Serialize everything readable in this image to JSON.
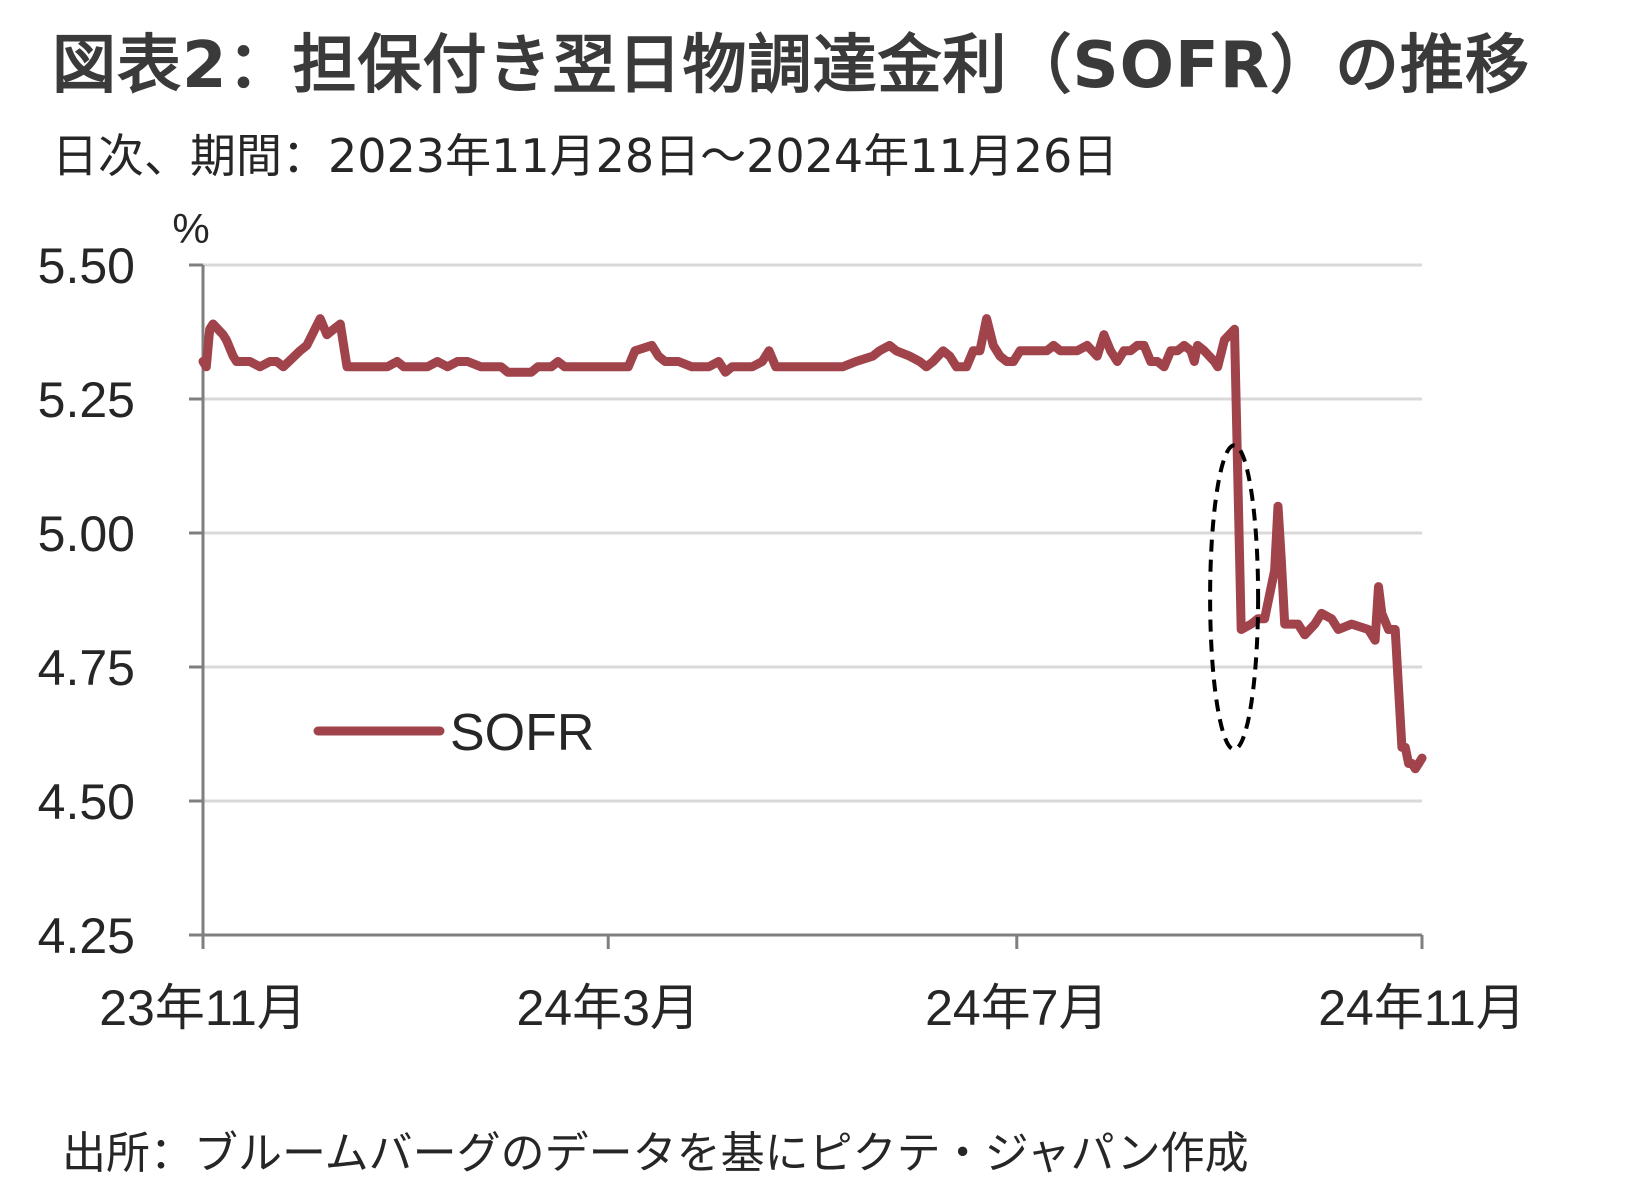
{
  "title": "図表2：担保付き翌日物調達金利（SOFR）の推移",
  "subtitle": "日次、期間：2023年11月28日～2024年11月26日",
  "source": "出所：ブルームバーグのデータを基にピクテ・ジャパン作成",
  "colors": {
    "series": "#a0434b",
    "grid": "#d9d9d9",
    "axis": "#7f7f7f",
    "annotation": "#000000"
  },
  "chart_data": {
    "type": "line",
    "yunit": "%",
    "ylim": [
      4.25,
      5.5
    ],
    "yticks": [
      "5.50",
      "5.25",
      "5.00",
      "4.75",
      "4.50",
      "4.25"
    ],
    "ytick_values": [
      5.5,
      5.25,
      5.0,
      4.75,
      4.5,
      4.25
    ],
    "xlim": [
      "2023-11-28",
      "2024-11-26"
    ],
    "xticks": [
      {
        "date": "2023-11-28",
        "label": "23年11月"
      },
      {
        "date": "2024-03-28",
        "label": "24年3月"
      },
      {
        "date": "2024-07-28",
        "label": "24年7月"
      },
      {
        "date": "2024-11-26",
        "label": "24年11月"
      }
    ],
    "grid": true,
    "legend_position": "left-lower",
    "annotation": {
      "type": "dashed-ellipse",
      "center": [
        "2024-09-30",
        4.88
      ],
      "note": ""
    },
    "series": [
      {
        "name": "SOFR",
        "points": [
          [
            "2023-11-28",
            5.32
          ],
          [
            "2023-11-29",
            5.31
          ],
          [
            "2023-11-30",
            5.38
          ],
          [
            "2023-12-01",
            5.39
          ],
          [
            "2023-12-04",
            5.37
          ],
          [
            "2023-12-05",
            5.36
          ],
          [
            "2023-12-07",
            5.33
          ],
          [
            "2023-12-08",
            5.32
          ],
          [
            "2023-12-12",
            5.32
          ],
          [
            "2023-12-15",
            5.31
          ],
          [
            "2023-12-18",
            5.32
          ],
          [
            "2023-12-20",
            5.32
          ],
          [
            "2023-12-22",
            5.31
          ],
          [
            "2023-12-27",
            5.34
          ],
          [
            "2023-12-29",
            5.35
          ],
          [
            "2024-01-02",
            5.4
          ],
          [
            "2024-01-04",
            5.37
          ],
          [
            "2024-01-06",
            5.38
          ],
          [
            "2024-01-08",
            5.39
          ],
          [
            "2024-01-10",
            5.31
          ],
          [
            "2024-01-16",
            5.31
          ],
          [
            "2024-01-22",
            5.31
          ],
          [
            "2024-01-25",
            5.32
          ],
          [
            "2024-01-27",
            5.31
          ],
          [
            "2024-02-03",
            5.31
          ],
          [
            "2024-02-06",
            5.32
          ],
          [
            "2024-02-09",
            5.31
          ],
          [
            "2024-02-12",
            5.32
          ],
          [
            "2024-02-15",
            5.32
          ],
          [
            "2024-02-19",
            5.31
          ],
          [
            "2024-02-25",
            5.31
          ],
          [
            "2024-02-27",
            5.3
          ],
          [
            "2024-03-05",
            5.3
          ],
          [
            "2024-03-07",
            5.31
          ],
          [
            "2024-03-11",
            5.31
          ],
          [
            "2024-03-13",
            5.32
          ],
          [
            "2024-03-15",
            5.31
          ],
          [
            "2024-04-01",
            5.31
          ],
          [
            "2024-04-03",
            5.31
          ],
          [
            "2024-04-05",
            5.34
          ],
          [
            "2024-04-10",
            5.35
          ],
          [
            "2024-04-12",
            5.33
          ],
          [
            "2024-04-14",
            5.32
          ],
          [
            "2024-04-18",
            5.32
          ],
          [
            "2024-04-22",
            5.31
          ],
          [
            "2024-04-27",
            5.31
          ],
          [
            "2024-04-30",
            5.32
          ],
          [
            "2024-05-02",
            5.3
          ],
          [
            "2024-05-04",
            5.31
          ],
          [
            "2024-05-10",
            5.31
          ],
          [
            "2024-05-13",
            5.32
          ],
          [
            "2024-05-15",
            5.34
          ],
          [
            "2024-05-17",
            5.31
          ],
          [
            "2024-05-20",
            5.31
          ],
          [
            "2024-06-06",
            5.31
          ],
          [
            "2024-06-10",
            5.32
          ],
          [
            "2024-06-15",
            5.33
          ],
          [
            "2024-06-17",
            5.34
          ],
          [
            "2024-06-20",
            5.35
          ],
          [
            "2024-06-22",
            5.34
          ],
          [
            "2024-06-26",
            5.33
          ],
          [
            "2024-06-29",
            5.32
          ],
          [
            "2024-07-01",
            5.31
          ],
          [
            "2024-07-03",
            5.32
          ],
          [
            "2024-07-06",
            5.34
          ],
          [
            "2024-07-08",
            5.33
          ],
          [
            "2024-07-10",
            5.31
          ],
          [
            "2024-07-13",
            5.31
          ],
          [
            "2024-07-15",
            5.34
          ],
          [
            "2024-07-17",
            5.34
          ],
          [
            "2024-07-19",
            5.4
          ],
          [
            "2024-07-21",
            5.35
          ],
          [
            "2024-07-23",
            5.33
          ],
          [
            "2024-07-25",
            5.32
          ],
          [
            "2024-07-27",
            5.32
          ],
          [
            "2024-07-29",
            5.34
          ],
          [
            "2024-08-02",
            5.34
          ],
          [
            "2024-08-06",
            5.34
          ],
          [
            "2024-08-08",
            5.35
          ],
          [
            "2024-08-10",
            5.34
          ],
          [
            "2024-08-15",
            5.34
          ],
          [
            "2024-08-18",
            5.35
          ],
          [
            "2024-08-21",
            5.33
          ],
          [
            "2024-08-23",
            5.37
          ],
          [
            "2024-08-25",
            5.34
          ],
          [
            "2024-08-27",
            5.32
          ],
          [
            "2024-08-29",
            5.34
          ],
          [
            "2024-08-31",
            5.34
          ],
          [
            "2024-09-02",
            5.35
          ],
          [
            "2024-09-04",
            5.35
          ],
          [
            "2024-09-06",
            5.32
          ],
          [
            "2024-09-08",
            5.32
          ],
          [
            "2024-09-10",
            5.31
          ],
          [
            "2024-09-12",
            5.34
          ],
          [
            "2024-09-14",
            5.34
          ],
          [
            "2024-09-16",
            5.35
          ],
          [
            "2024-09-18",
            5.34
          ],
          [
            "2024-09-19",
            5.32
          ],
          [
            "2024-09-20",
            5.35
          ],
          [
            "2024-09-22",
            5.34
          ],
          [
            "2024-09-25",
            5.32
          ],
          [
            "2024-09-26",
            5.31
          ],
          [
            "2024-09-28",
            5.36
          ],
          [
            "2024-10-01",
            5.38
          ],
          [
            "2024-10-03",
            4.82
          ],
          [
            "2024-10-06",
            4.83
          ],
          [
            "2024-10-08",
            4.84
          ],
          [
            "2024-10-10",
            4.84
          ],
          [
            "2024-10-13",
            4.93
          ],
          [
            "2024-10-14",
            5.05
          ],
          [
            "2024-10-15",
            4.95
          ],
          [
            "2024-10-16",
            4.83
          ],
          [
            "2024-10-20",
            4.83
          ],
          [
            "2024-10-22",
            4.81
          ],
          [
            "2024-10-25",
            4.83
          ],
          [
            "2024-10-27",
            4.85
          ],
          [
            "2024-10-30",
            4.84
          ],
          [
            "2024-11-01",
            4.82
          ],
          [
            "2024-11-05",
            4.83
          ],
          [
            "2024-11-10",
            4.82
          ],
          [
            "2024-11-12",
            4.8
          ],
          [
            "2024-11-13",
            4.9
          ],
          [
            "2024-11-14",
            4.85
          ],
          [
            "2024-11-16",
            4.82
          ],
          [
            "2024-11-18",
            4.82
          ],
          [
            "2024-11-20",
            4.6
          ],
          [
            "2024-11-21",
            4.6
          ],
          [
            "2024-11-22",
            4.57
          ],
          [
            "2024-11-23",
            4.57
          ],
          [
            "2024-11-24",
            4.56
          ],
          [
            "2024-11-25",
            4.57
          ],
          [
            "2024-11-26",
            4.58
          ]
        ]
      }
    ]
  }
}
